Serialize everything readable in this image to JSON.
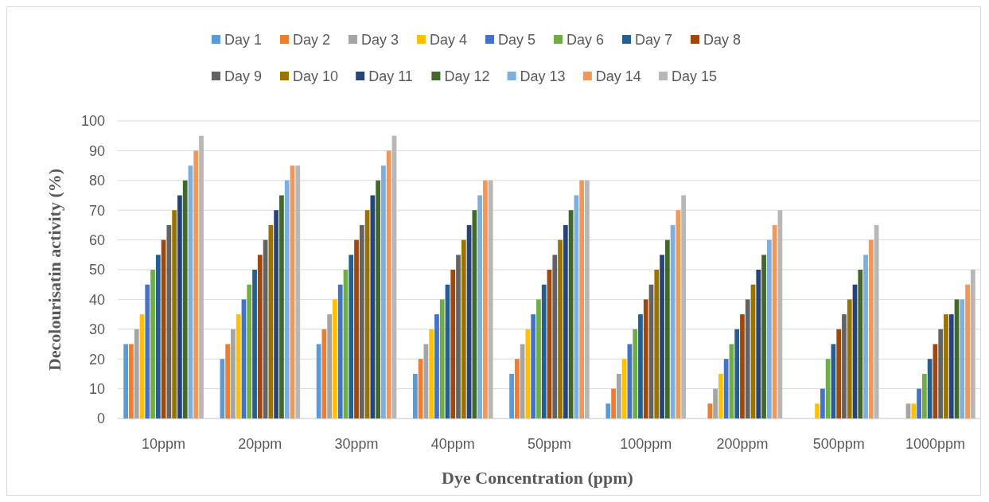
{
  "chart_data": {
    "type": "bar",
    "xlabel": "Dye Concentration (ppm)",
    "ylabel": "Decolourisatin activity (%)",
    "categories": [
      "10ppm",
      "20ppm",
      "30ppm",
      "40ppm",
      "50ppm",
      "100ppm",
      "200ppm",
      "500ppm",
      "1000ppm"
    ],
    "series": [
      {
        "name": "Day 1",
        "color": "#5b9bd5",
        "values": [
          25,
          20,
          25,
          15,
          15,
          5,
          0,
          0,
          0
        ]
      },
      {
        "name": "Day 2",
        "color": "#ed7d31",
        "values": [
          25,
          25,
          30,
          20,
          20,
          10,
          5,
          0,
          0
        ]
      },
      {
        "name": "Day 3",
        "color": "#a5a5a5",
        "values": [
          30,
          30,
          35,
          25,
          25,
          15,
          10,
          0,
          5
        ]
      },
      {
        "name": "Day 4",
        "color": "#ffc000",
        "values": [
          35,
          35,
          40,
          30,
          30,
          20,
          15,
          5,
          5
        ]
      },
      {
        "name": "Day 5",
        "color": "#4472c4",
        "values": [
          45,
          40,
          45,
          35,
          35,
          25,
          20,
          10,
          10
        ]
      },
      {
        "name": "Day 6",
        "color": "#70ad47",
        "values": [
          50,
          45,
          50,
          40,
          40,
          30,
          25,
          20,
          15
        ]
      },
      {
        "name": "Day 7",
        "color": "#255e91",
        "values": [
          55,
          50,
          55,
          45,
          45,
          35,
          30,
          25,
          20
        ]
      },
      {
        "name": "Day 8",
        "color": "#9e480e",
        "values": [
          60,
          55,
          60,
          50,
          50,
          40,
          35,
          30,
          25
        ]
      },
      {
        "name": "Day 9",
        "color": "#636363",
        "values": [
          65,
          60,
          65,
          55,
          55,
          45,
          40,
          35,
          30
        ]
      },
      {
        "name": "Day 10",
        "color": "#997300",
        "values": [
          70,
          65,
          70,
          60,
          60,
          50,
          45,
          40,
          35
        ]
      },
      {
        "name": "Day 11",
        "color": "#264478",
        "values": [
          75,
          70,
          75,
          65,
          65,
          55,
          50,
          45,
          35
        ]
      },
      {
        "name": "Day 12",
        "color": "#43682b",
        "values": [
          80,
          75,
          80,
          70,
          70,
          60,
          55,
          50,
          40
        ]
      },
      {
        "name": "Day 13",
        "color": "#7cafdd",
        "values": [
          85,
          80,
          85,
          75,
          75,
          65,
          60,
          55,
          40
        ]
      },
      {
        "name": "Day 14",
        "color": "#f1975a",
        "values": [
          90,
          85,
          90,
          80,
          80,
          70,
          65,
          60,
          45
        ]
      },
      {
        "name": "Day 15",
        "color": "#b7b7b7",
        "values": [
          95,
          85,
          95,
          80,
          80,
          75,
          70,
          65,
          50
        ]
      }
    ],
    "ylim": [
      0,
      100
    ],
    "yticks": [
      0,
      10,
      20,
      30,
      40,
      50,
      60,
      70,
      80,
      90,
      100
    ],
    "grid": "y",
    "legend": "top"
  }
}
